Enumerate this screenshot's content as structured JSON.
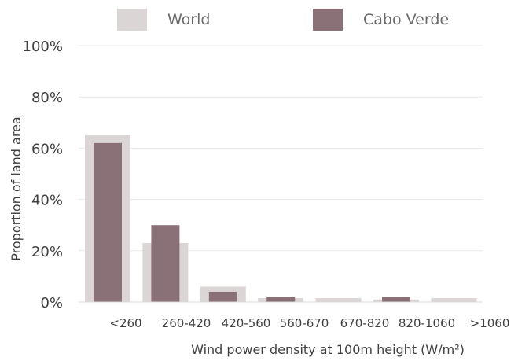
{
  "chart_data": {
    "type": "bar",
    "categories": [
      "<260",
      "260-420",
      "420-560",
      "560-670",
      "670-820",
      "820-1060",
      ">1060"
    ],
    "series": [
      {
        "name": "World",
        "values": [
          65,
          23,
          6,
          1.5,
          1.5,
          1,
          1.5
        ],
        "color": "#dcd5d6"
      },
      {
        "name": "Cabo Verde",
        "values": [
          62,
          30,
          4,
          2,
          0,
          2,
          0
        ],
        "color": "#8a7177"
      }
    ],
    "ylim": [
      0,
      100
    ],
    "yticks": [
      "0%",
      "20%",
      "40%",
      "60%",
      "80%",
      "100%"
    ],
    "xlabel": "Wind power density at 100m height (W/m²)",
    "ylabel": "Proportion of land area",
    "grid": true,
    "legend": "top"
  }
}
